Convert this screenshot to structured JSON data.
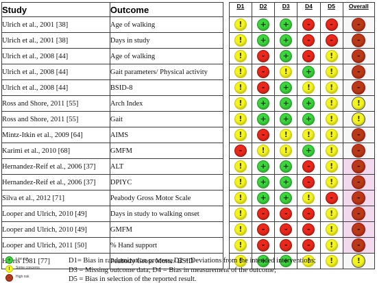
{
  "header": {
    "study": "Study",
    "outcome": "Outcome",
    "domains": [
      "D1",
      "D2",
      "D3",
      "D4",
      "D5"
    ],
    "overall": "Overall"
  },
  "symbols": {
    "low": "+",
    "some": "!",
    "high": "-"
  },
  "colors": {
    "low": "#3dd43d",
    "some": "#f4f41e",
    "high": "#e8291c",
    "overall_high": "#b83a18",
    "highlight": "#f3d9ee"
  },
  "rows": [
    {
      "study": "Ulrich et al., 2001 [38]",
      "outcome": "Age of walking",
      "judgements": [
        "some",
        "low",
        "low",
        "high",
        "high",
        "high"
      ],
      "overall_highlight": false
    },
    {
      "study": "Ulrich et al., 2001 [38]",
      "outcome": "Days in study",
      "judgements": [
        "some",
        "low",
        "low",
        "high",
        "high",
        "high"
      ],
      "overall_highlight": false
    },
    {
      "study": "Ulrich et al., 2008 [44]",
      "outcome": "Age of walking",
      "judgements": [
        "some",
        "high",
        "low",
        "high",
        "some",
        "high"
      ],
      "overall_highlight": false
    },
    {
      "study": "Ulrich et al., 2008 [44]",
      "outcome": "Gait parameters/ Physical activity",
      "judgements": [
        "some",
        "high",
        "some",
        "low",
        "some",
        "high"
      ],
      "overall_highlight": false
    },
    {
      "study": "Ulrich et al., 2008 [44]",
      "outcome": "BSID-8",
      "judgements": [
        "some",
        "high",
        "low",
        "some",
        "some",
        "high"
      ],
      "overall_highlight": false
    },
    {
      "study": "Ross and Shore, 2011 [55]",
      "outcome": "Arch Index",
      "judgements": [
        "some",
        "low",
        "low",
        "low",
        "some",
        "some"
      ],
      "overall_highlight": false
    },
    {
      "study": "Ross and Shore, 2011 [55]",
      "outcome": "Gait",
      "judgements": [
        "some",
        "low",
        "low",
        "low",
        "some",
        "some"
      ],
      "overall_highlight": false
    },
    {
      "study": "Mintz-Itkin et al., 2009 [64]",
      "outcome": "AIMS",
      "judgements": [
        "some",
        "high",
        "some",
        "some",
        "some",
        "high"
      ],
      "overall_highlight": false
    },
    {
      "study": "Karimi et al., 2010 [68]",
      "outcome": "GMFM",
      "judgements": [
        "high",
        "some",
        "some",
        "low",
        "some",
        "high"
      ],
      "overall_highlight": false
    },
    {
      "study": "Hernandez-Reif et al., 2006 [37]",
      "outcome": "ALT",
      "judgements": [
        "some",
        "low",
        "low",
        "high",
        "some",
        "high"
      ],
      "overall_highlight": true
    },
    {
      "study": "Hernandez-Reif et al., 2006 [37]",
      "outcome": "DPIYC",
      "judgements": [
        "some",
        "low",
        "low",
        "high",
        "some",
        "high"
      ],
      "overall_highlight": true
    },
    {
      "study": "Silva et al., 2012 [71]",
      "outcome": "Peabody Gross Motor Scale",
      "judgements": [
        "some",
        "low",
        "low",
        "some",
        "high",
        "high"
      ],
      "overall_highlight": true
    },
    {
      "study": "Looper and Ulrich, 2010 [49]",
      "outcome": "Days in study to walking onset",
      "judgements": [
        "some",
        "high",
        "high",
        "high",
        "some",
        "high"
      ],
      "overall_highlight": true
    },
    {
      "study": "Looper and Ulrich, 2010 [49]",
      "outcome": "GMFM",
      "judgements": [
        "some",
        "high",
        "high",
        "high",
        "some",
        "high"
      ],
      "overall_highlight": true
    },
    {
      "study": "Looper and Ulrich, 2011 [50]",
      "outcome": "% Hand support",
      "judgements": [
        "some",
        "high",
        "high",
        "high",
        "some",
        "high"
      ],
      "overall_highlight": true
    },
    {
      "study": "Harris 1981 [77]",
      "outcome": "Peabody Gross Motor/ BSID",
      "judgements": [
        "some",
        "low",
        "low",
        "some",
        "some",
        "some"
      ],
      "overall_highlight": false
    }
  ],
  "legend": {
    "items": [
      {
        "level": "low",
        "label": "Low risk"
      },
      {
        "level": "some",
        "label": "Some concerns"
      },
      {
        "level": "high",
        "label": "High risk"
      }
    ],
    "notes": [
      "D1= Bias in randomization process; D2 = Deviations from the intended interventions;",
      "D3 = Missing outcome data; D4 = Bias in measurement of the outcome;",
      "D5 = Bias in selection of the reported result."
    ]
  }
}
